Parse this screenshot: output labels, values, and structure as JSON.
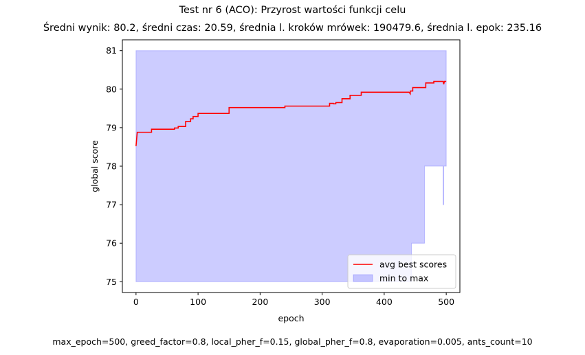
{
  "chart_data": {
    "type": "line",
    "title": "Test nr 6 (ACO): Przyrost wartości funkcji celu",
    "subtitle": "Średni wynik: 80.2, średni czas: 20.59, średnia l. kroków mrówek: 190479.6, średnia l. epok: 235.16",
    "xlabel": "epoch",
    "ylabel": "global score",
    "footer": "max_epoch=500, greed_factor=0.8, local_pher_f=0.15, global_pher_f=0.8, evaporation=0.005, ants_count=10",
    "xlim": [
      -22,
      522
    ],
    "ylim": [
      74.72,
      81.28
    ],
    "xticks": [
      0,
      100,
      200,
      300,
      400,
      500
    ],
    "yticks": [
      75,
      76,
      77,
      78,
      79,
      80,
      81
    ],
    "grid": false,
    "legend_position": "lower-right",
    "series": [
      {
        "name": "avg best scores",
        "kind": "line",
        "color": "#ff0000",
        "points": [
          [
            0,
            78.52
          ],
          [
            2,
            78.88
          ],
          [
            25,
            78.88
          ],
          [
            25,
            78.96
          ],
          [
            62,
            78.96
          ],
          [
            62,
            78.99
          ],
          [
            68,
            78.99
          ],
          [
            68,
            79.03
          ],
          [
            80,
            79.03
          ],
          [
            80,
            79.16
          ],
          [
            88,
            79.16
          ],
          [
            88,
            79.23
          ],
          [
            92,
            79.23
          ],
          [
            92,
            79.29
          ],
          [
            100,
            79.29
          ],
          [
            100,
            79.37
          ],
          [
            150,
            79.37
          ],
          [
            150,
            79.52
          ],
          [
            240,
            79.52
          ],
          [
            240,
            79.56
          ],
          [
            312,
            79.56
          ],
          [
            312,
            79.63
          ],
          [
            318,
            79.63
          ],
          [
            318,
            79.62
          ],
          [
            322,
            79.62
          ],
          [
            322,
            79.65
          ],
          [
            332,
            79.65
          ],
          [
            332,
            79.75
          ],
          [
            345,
            79.75
          ],
          [
            345,
            79.84
          ],
          [
            363,
            79.84
          ],
          [
            363,
            79.92
          ],
          [
            440,
            79.92
          ],
          [
            442,
            79.88
          ],
          [
            442,
            79.95
          ],
          [
            446,
            79.95
          ],
          [
            446,
            80.04
          ],
          [
            467,
            80.04
          ],
          [
            467,
            80.16
          ],
          [
            480,
            80.16
          ],
          [
            480,
            80.2
          ],
          [
            495,
            80.2
          ],
          [
            496,
            80.13
          ],
          [
            497,
            80.2
          ],
          [
            500,
            80.2
          ]
        ]
      },
      {
        "name": "min to max",
        "kind": "band",
        "color": "#0000ff",
        "upper": [
          [
            0,
            81
          ],
          [
            500,
            81
          ]
        ],
        "lower": [
          [
            0,
            75
          ],
          [
            444,
            75
          ],
          [
            444,
            76
          ],
          [
            465,
            76
          ],
          [
            465,
            78
          ],
          [
            495,
            78
          ],
          [
            495,
            77
          ],
          [
            496,
            77
          ],
          [
            496,
            78
          ],
          [
            500,
            78
          ]
        ]
      }
    ]
  }
}
